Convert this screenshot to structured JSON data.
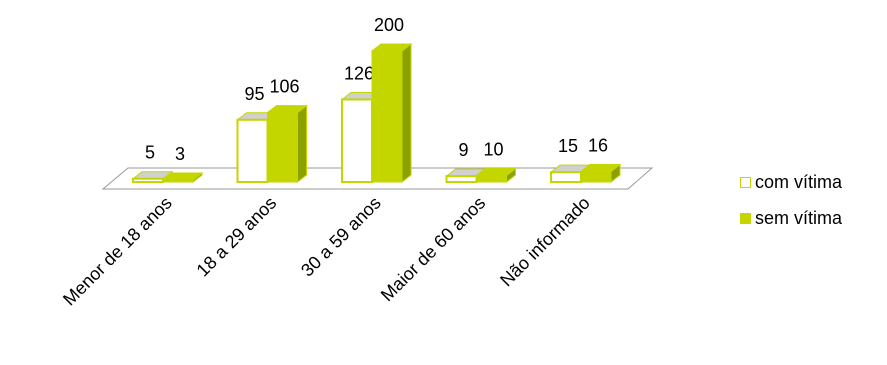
{
  "chart_data": {
    "type": "bar",
    "categories": [
      "Menor de 18 anos",
      "18 a 29 anos",
      "30 a 59 anos",
      "Maior de 60 anos",
      "Não informado"
    ],
    "series": [
      {
        "name": "com vítima",
        "values": [
          5,
          95,
          126,
          9,
          15
        ],
        "color": "#ffffff",
        "stroke": "#c4d600"
      },
      {
        "name": "sem vítima",
        "values": [
          3,
          106,
          200,
          10,
          16
        ],
        "color": "#c4d600",
        "stroke": "#c4d600"
      }
    ],
    "title": "",
    "xlabel": "",
    "ylabel": "",
    "ylim": [
      0,
      200
    ],
    "grid": false,
    "legend_position": "right",
    "style": "3d-clustered-column",
    "colors": {
      "accent": "#c4d600",
      "accent_side": "#8aa100",
      "floor_top": "#d0d0d0",
      "axis": "#999999"
    }
  }
}
